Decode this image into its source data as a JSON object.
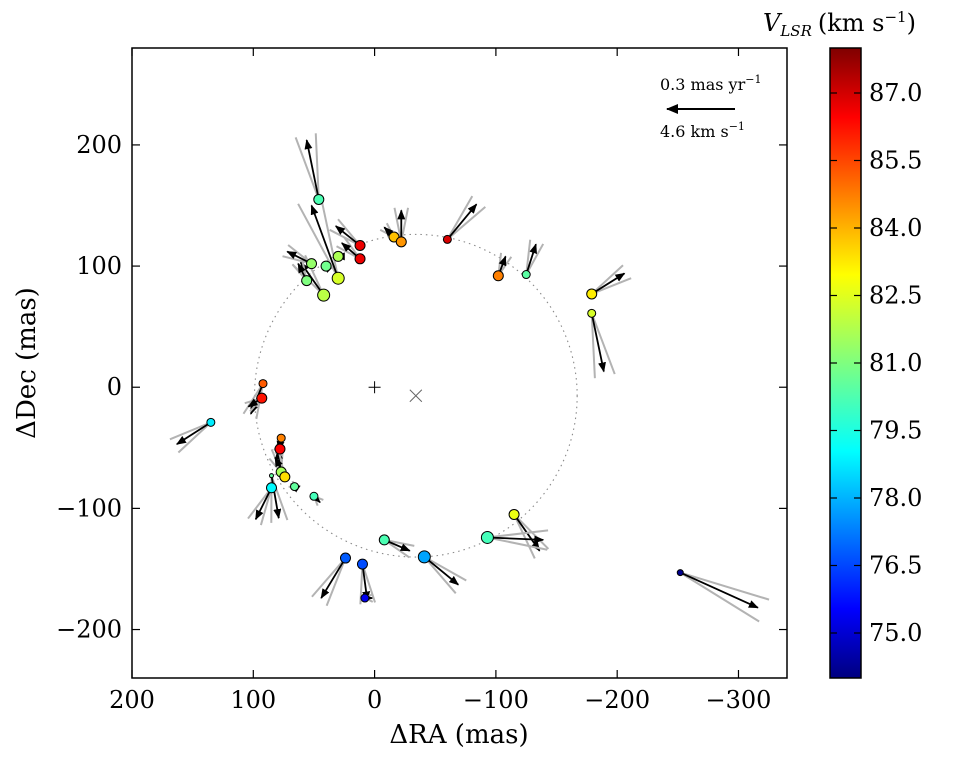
{
  "chart_data": {
    "type": "scatter",
    "subtype": "proper-motion vector map",
    "xlabel": "ΔRA (mas)",
    "ylabel": "ΔDec (mas)",
    "xlim": [
      200,
      -340
    ],
    "ylim": [
      -240,
      280
    ],
    "xticks": [
      200,
      100,
      0,
      -100,
      -200,
      -300
    ],
    "xtick_labels": [
      "200",
      "100",
      "0",
      "−100",
      "−200",
      "−300"
    ],
    "yticks": [
      -200,
      -100,
      0,
      100,
      200
    ],
    "ytick_labels": [
      "−200",
      "−100",
      "0",
      "100",
      "200"
    ],
    "grid": false,
    "colorbar": {
      "title": "V",
      "title_subscript": "LSR",
      "title_unit_prefix": "(km s",
      "title_unit_exp": "−1",
      "title_unit_suffix": ")",
      "vmin": 74.0,
      "vmax": 88.0,
      "ticks": [
        87.0,
        85.5,
        84.0,
        82.5,
        81.0,
        79.5,
        78.0,
        76.5,
        75.0
      ],
      "tick_labels": [
        "87.0",
        "85.5",
        "84.0",
        "82.5",
        "81.0",
        "79.5",
        "78.0",
        "76.5",
        "75.0"
      ],
      "colormap": "jet"
    },
    "scale_legend": {
      "line1": "0.3 mas yr",
      "line1_exp": "−1",
      "line2": "4.6 km s",
      "line2_exp": "−1",
      "position": "top-right"
    },
    "center_markers": [
      {
        "name": "plus",
        "x": 0,
        "y": 0
      },
      {
        "name": "cross",
        "x": -34,
        "y": -7
      }
    ],
    "ring": {
      "center_x": -34,
      "center_y": -7,
      "radius": 133
    },
    "points": [
      {
        "x": 46,
        "y": 155,
        "v": 80.3,
        "dx": 10,
        "dy": 49,
        "size": 5
      },
      {
        "x": 12,
        "y": 117,
        "v": 86.5,
        "dx": 20,
        "dy": 16,
        "size": 5
      },
      {
        "x": 12,
        "y": 106,
        "v": 86.5,
        "dx": 15,
        "dy": 13,
        "size": 5
      },
      {
        "x": -16,
        "y": 124,
        "v": 83.6,
        "dx": 8,
        "dy": 8,
        "size": 5
      },
      {
        "x": -22,
        "y": 120,
        "v": 84.2,
        "dx": 0,
        "dy": 26,
        "size": 5
      },
      {
        "x": -60,
        "y": 122,
        "v": 86.8,
        "dx": -24,
        "dy": 29,
        "size": 4
      },
      {
        "x": 30,
        "y": 108,
        "v": 81.6,
        "dx": 2,
        "dy": 0,
        "size": 5
      },
      {
        "x": 40,
        "y": 100,
        "v": 80.8,
        "dx": 2,
        "dy": 2,
        "size": 5
      },
      {
        "x": 30,
        "y": 90,
        "v": 82.2,
        "dx": 22,
        "dy": 60,
        "size": 6
      },
      {
        "x": 42,
        "y": 76,
        "v": 81.8,
        "dx": 19,
        "dy": 27,
        "size": 6
      },
      {
        "x": 56,
        "y": 88,
        "v": 81.0,
        "dx": 7,
        "dy": 14,
        "size": 5
      },
      {
        "x": 52,
        "y": 102,
        "v": 81.3,
        "dx": 20,
        "dy": 10,
        "size": 5
      },
      {
        "x": -102,
        "y": 92,
        "v": 84.5,
        "dx": -6,
        "dy": 16,
        "size": 5
      },
      {
        "x": -125,
        "y": 93,
        "v": 80.5,
        "dx": -8,
        "dy": 25,
        "size": 4
      },
      {
        "x": -179,
        "y": 77,
        "v": 83.0,
        "dx": -27,
        "dy": 17,
        "size": 5
      },
      {
        "x": -179,
        "y": 61,
        "v": 82.2,
        "dx": -10,
        "dy": -48,
        "size": 4
      },
      {
        "x": 92,
        "y": 3,
        "v": 85.0,
        "dx": 10,
        "dy": -25,
        "size": 4
      },
      {
        "x": 93,
        "y": -9,
        "v": 86.0,
        "dx": 11,
        "dy": -7,
        "size": 5
      },
      {
        "x": 135,
        "y": -29,
        "v": 79.0,
        "dx": 28,
        "dy": -18,
        "size": 4
      },
      {
        "x": 77,
        "y": -42,
        "v": 84.5,
        "dx": 2,
        "dy": -10,
        "size": 4
      },
      {
        "x": 78,
        "y": -51,
        "v": 86.3,
        "dx": 1,
        "dy": -4,
        "size": 5
      },
      {
        "x": 77,
        "y": -70,
        "v": 81.5,
        "dx": 3,
        "dy": 18,
        "size": 5
      },
      {
        "x": 74,
        "y": -74,
        "v": 83.2,
        "dx": 8,
        "dy": 16,
        "size": 5
      },
      {
        "x": 66,
        "y": -82,
        "v": 80.6,
        "dx": 3,
        "dy": 2,
        "size": 4
      },
      {
        "x": 85,
        "y": -83,
        "v": 79.2,
        "dx": 13,
        "dy": -26,
        "size": 5
      },
      {
        "x": 50,
        "y": -90,
        "v": 80.2,
        "dx": -5,
        "dy": -5,
        "size": 4
      },
      {
        "x": 85,
        "y": -73,
        "v": 80.6,
        "dx": -6,
        "dy": -35,
        "size": 2
      },
      {
        "x": -115,
        "y": -105,
        "v": 82.5,
        "dx": -21,
        "dy": -30,
        "size": 5
      },
      {
        "x": -93,
        "y": -124,
        "v": 80.2,
        "dx": -46,
        "dy": -2,
        "size": 6
      },
      {
        "x": -8,
        "y": -126,
        "v": 80.3,
        "dx": -21,
        "dy": -9,
        "size": 5
      },
      {
        "x": -41,
        "y": -140,
        "v": 78.0,
        "dx": -28,
        "dy": -23,
        "size": 6
      },
      {
        "x": 24,
        "y": -141,
        "v": 77.0,
        "dx": 20,
        "dy": -33,
        "size": 5
      },
      {
        "x": 10,
        "y": -146,
        "v": 76.8,
        "dx": -4,
        "dy": -30,
        "size": 5
      },
      {
        "x": 8,
        "y": -174,
        "v": 75.5,
        "dx": -6,
        "dy": 0,
        "size": 4
      },
      {
        "x": -252,
        "y": -153,
        "v": 74.2,
        "dx": -64,
        "dy": -29,
        "size": 3
      }
    ]
  }
}
